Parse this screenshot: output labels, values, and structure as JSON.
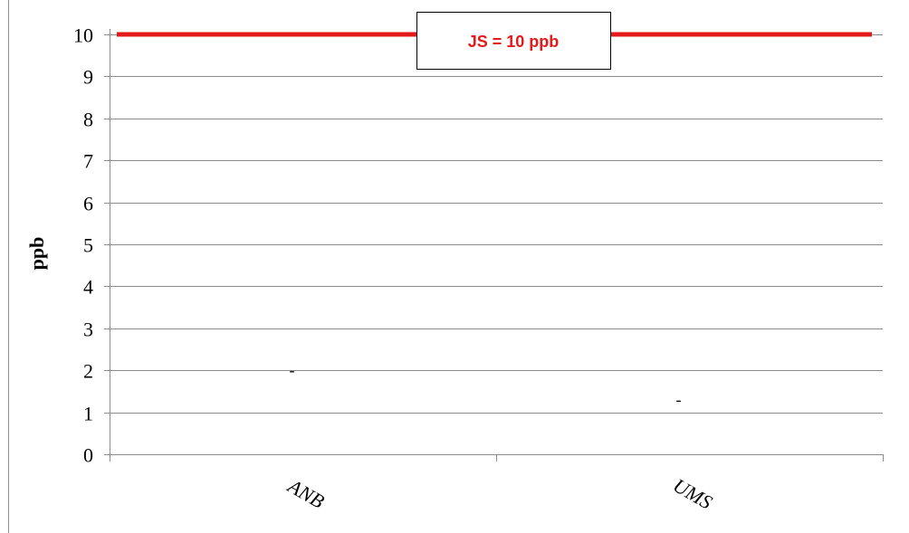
{
  "chart_data": {
    "type": "bar",
    "categories": [
      "ANB",
      "UMS"
    ],
    "values": [
      2,
      1.3
    ],
    "data_labels": [
      "-",
      "-"
    ],
    "ylabel": "ppb",
    "xlabel": "",
    "ylim": [
      0,
      10
    ],
    "yticks": [
      "0",
      "1",
      "2",
      "3",
      "4",
      "5",
      "6",
      "7",
      "8",
      "9",
      "10"
    ],
    "grid": true,
    "legend": "none",
    "reference_line": {
      "value": 10,
      "label": "JS = 10 ppb",
      "color": "#e41a1a"
    },
    "colors": {
      "grid": "#8c8c8c",
      "axis": "#8c8c8c",
      "limit_text": "#e41a1a"
    }
  }
}
